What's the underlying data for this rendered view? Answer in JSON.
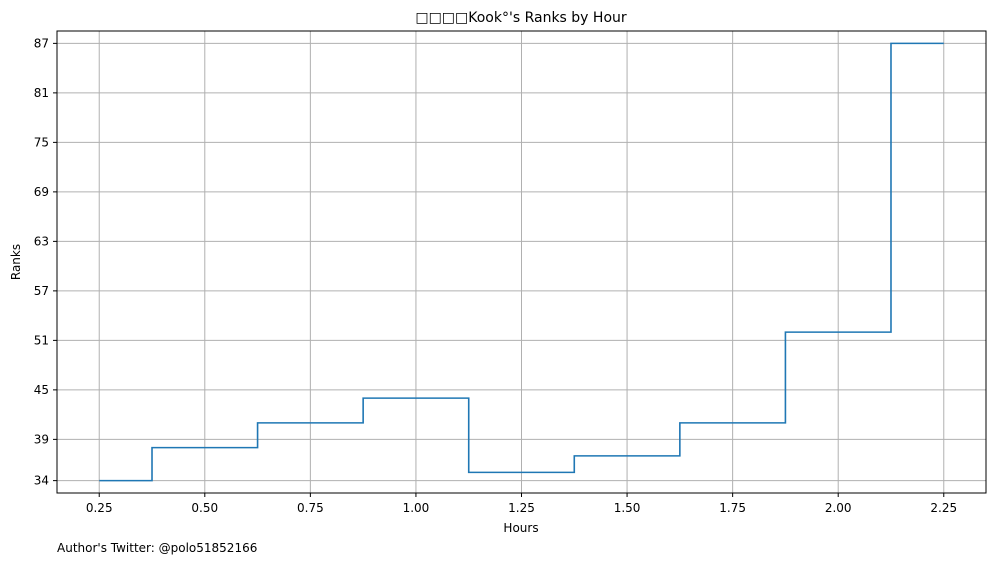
{
  "chart_data": {
    "type": "line",
    "step": "mid",
    "title": "□□□□Kook°'s Ranks by Hour",
    "xlabel": "Hours",
    "ylabel": "Ranks",
    "xlim": [
      0.15,
      2.35
    ],
    "ylim": [
      88.5,
      32.5
    ],
    "x_ticks": [
      0.25,
      0.5,
      0.75,
      1.0,
      1.25,
      1.5,
      1.75,
      2.0,
      2.25
    ],
    "x_tick_labels": [
      "0.25",
      "0.50",
      "0.75",
      "1.00",
      "1.25",
      "1.50",
      "1.75",
      "2.00",
      "2.25"
    ],
    "y_ticks": [
      34,
      39,
      45,
      51,
      57,
      63,
      69,
      75,
      81,
      87
    ],
    "y_tick_labels": [
      "34",
      "39",
      "45",
      "51",
      "57",
      "63",
      "69",
      "75",
      "81",
      "87"
    ],
    "y_inverted": true,
    "grid": true,
    "series": [
      {
        "color": "#1f77b4",
        "x": [
          0.25,
          0.5,
          0.75,
          1.0,
          1.25,
          1.5,
          1.75,
          2.0,
          2.25
        ],
        "y": [
          34,
          38,
          41,
          44,
          35,
          37,
          41,
          52,
          87
        ]
      }
    ]
  },
  "footnote": "Author's Twitter: @polo51852166"
}
